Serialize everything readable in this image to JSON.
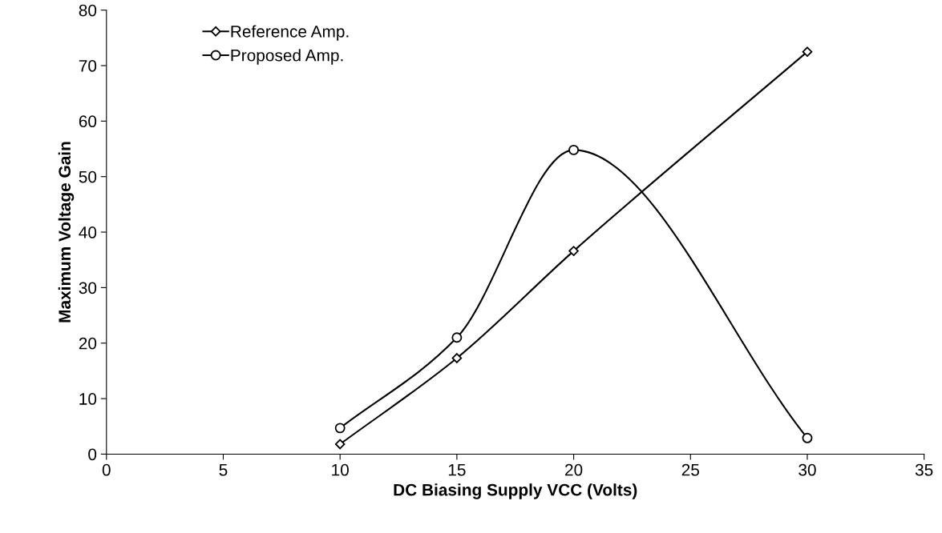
{
  "chart_data": {
    "type": "line",
    "xlabel": "DC Biasing Supply VCC (Volts)",
    "ylabel": "Maximum Voltage Gain",
    "x": [
      10,
      15,
      20,
      30
    ],
    "series": [
      {
        "name": "Reference Amp.",
        "color": "#000000",
        "marker": "diamond",
        "values": [
          1.8,
          17.3,
          36.6,
          72.5
        ]
      },
      {
        "name": "Proposed Amp.",
        "color": "#000000",
        "marker": "circle",
        "values": [
          4.7,
          21.0,
          54.8,
          2.9
        ]
      }
    ],
    "xlim": [
      0,
      35
    ],
    "xticks": [
      0,
      5,
      10,
      15,
      20,
      25,
      30,
      35
    ],
    "ylim": [
      0,
      80
    ],
    "yticks": [
      0,
      10,
      20,
      30,
      40,
      50,
      60,
      70,
      80
    ],
    "grid": false,
    "legend": "top left",
    "line_style": "solid"
  }
}
